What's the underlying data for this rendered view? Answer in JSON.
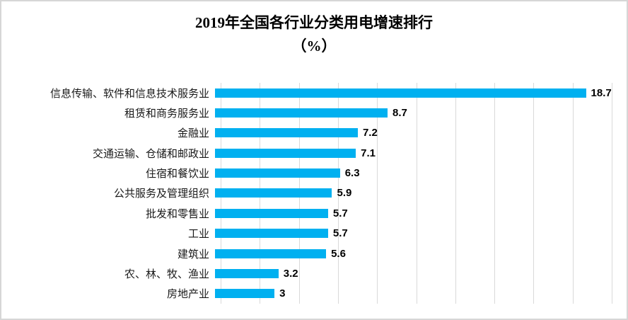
{
  "title": {
    "line1": "2019年全国各行业分类用电增速排行",
    "line2": "（%）"
  },
  "chart_data": {
    "type": "bar",
    "orientation": "horizontal",
    "title": "2019年全国各行业分类用电增速排行（%）",
    "categories": [
      "信息传输、软件和信息技术服务业",
      "租赁和商务服务业",
      "金融业",
      "交通运输、仓储和邮政业",
      "住宿和餐饮业",
      "公共服务及管理组织",
      "批发和零售业",
      "工业",
      "建筑业",
      "农、林、牧、渔业",
      "房地产业"
    ],
    "values": [
      18.7,
      8.7,
      7.2,
      7.1,
      6.3,
      5.9,
      5.7,
      5.7,
      5.6,
      3.2,
      3
    ],
    "value_labels": [
      "18.7",
      "8.7",
      "7.2",
      "7.1",
      "6.3",
      "5.9",
      "5.7",
      "5.7",
      "5.6",
      "3.2",
      "3"
    ],
    "xlabel": "",
    "ylabel": "",
    "xlim": [
      0,
      20
    ],
    "gridlines": [
      0,
      2,
      4,
      6,
      8,
      10,
      12,
      14,
      16,
      18,
      20
    ],
    "grid": true,
    "legend": "none",
    "bar_color": "#00b0f0",
    "gridline_color": "#d9d9d9",
    "border_color": "#d6d6d6",
    "label_color": "#1a1a1a",
    "value_color": "#000000"
  }
}
